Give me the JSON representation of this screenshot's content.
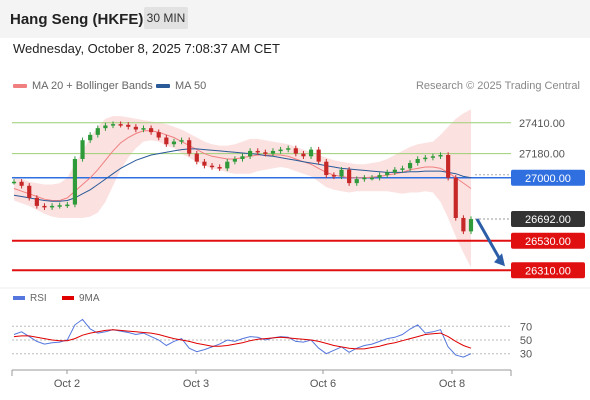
{
  "header": {
    "title": "Hang Seng (HKFE)",
    "timeframe": "30 MIN"
  },
  "datetime": "Wednesday, October 8, 2025 7:08:37 AM CET",
  "legend": {
    "ma20_label": "MA 20 + Bollinger Bands",
    "ma50_label": "MA 50",
    "ma20_color": "#f08080",
    "ma50_color": "#2a5a98"
  },
  "credit": "Research © 2025 Trading Central",
  "rsi_legend": {
    "rsi_label": "RSI",
    "ma_label": "9MA",
    "rsi_color": "#5577dd",
    "ma_color": "#e00000"
  },
  "chart_data": {
    "type": "line",
    "series_kind": "candlestick price with overlays",
    "y_range": [
      26200,
      27580
    ],
    "x_ticks": [
      "Oct 2",
      "Oct 3",
      "Oct 6",
      "Oct 8"
    ],
    "levels": [
      {
        "value": 27410,
        "label": "27410.00",
        "kind": "resistance",
        "color": "#9bcf74"
      },
      {
        "value": 27180,
        "label": "27180.00",
        "kind": "resistance",
        "color": "#9bcf74"
      },
      {
        "value": 27000,
        "label": "27000.00",
        "kind": "pivot",
        "color": "#2f6fe0"
      },
      {
        "value": 26692,
        "label": "26692.00",
        "kind": "last",
        "color": "#333333"
      },
      {
        "value": 26530,
        "label": "26530.00",
        "kind": "support",
        "color": "#e01010"
      },
      {
        "value": 26310,
        "label": "26310.00",
        "kind": "support",
        "color": "#e01010"
      }
    ],
    "price": [
      26970,
      26940,
      26850,
      26790,
      26780,
      26790,
      26795,
      26800,
      27140,
      27280,
      27320,
      27370,
      27390,
      27400,
      27395,
      27380,
      27360,
      27370,
      27340,
      27300,
      27250,
      27270,
      27280,
      27180,
      27120,
      27090,
      27080,
      27070,
      27120,
      27140,
      27160,
      27200,
      27190,
      27180,
      27200,
      27210,
      27220,
      27180,
      27160,
      27210,
      27120,
      27020,
      27010,
      27060,
      26960,
      26990,
      27000,
      27000,
      27020,
      27040,
      27060,
      27070,
      27110,
      27140,
      27150,
      27160,
      27170,
      27000,
      26700,
      26600,
      26692
    ],
    "ma20": [
      26920,
      26900,
      26880,
      26860,
      26840,
      26830,
      26830,
      26850,
      26900,
      26950,
      27000,
      27060,
      27130,
      27200,
      27260,
      27300,
      27330,
      27350,
      27350,
      27340,
      27320,
      27300,
      27270,
      27240,
      27210,
      27180,
      27160,
      27150,
      27140,
      27140,
      27150,
      27160,
      27170,
      27170,
      27170,
      27170,
      27160,
      27140,
      27120,
      27100,
      27070,
      27040,
      27020,
      27010,
      27000,
      27000,
      27000,
      27005,
      27010,
      27020,
      27030,
      27040,
      27060,
      27070,
      27080,
      27080,
      27070,
      27040,
      27000,
      26960,
      26920
    ],
    "ma50": [
      26870,
      26860,
      26850,
      26840,
      26830,
      26825,
      26825,
      26830,
      26850,
      26880,
      26910,
      26950,
      26990,
      27030,
      27070,
      27100,
      27130,
      27150,
      27170,
      27180,
      27190,
      27200,
      27210,
      27215,
      27215,
      27210,
      27205,
      27200,
      27195,
      27190,
      27185,
      27180,
      27175,
      27165,
      27160,
      27150,
      27140,
      27130,
      27120,
      27110,
      27100,
      27090,
      27080,
      27070,
      27065,
      27060,
      27055,
      27050,
      27045,
      27040,
      27040,
      27040,
      27045,
      27045,
      27050,
      27050,
      27050,
      27040,
      27030,
      27010,
      27000
    ],
    "bb_upper": [
      27010,
      26990,
      26970,
      26960,
      26950,
      26950,
      26960,
      27000,
      27100,
      27200,
      27300,
      27380,
      27440,
      27460,
      27460,
      27450,
      27440,
      27430,
      27420,
      27410,
      27400,
      27380,
      27360,
      27330,
      27300,
      27270,
      27250,
      27240,
      27240,
      27250,
      27270,
      27290,
      27290,
      27280,
      27270,
      27260,
      27250,
      27230,
      27210,
      27190,
      27170,
      27150,
      27130,
      27120,
      27110,
      27100,
      27100,
      27110,
      27120,
      27140,
      27170,
      27200,
      27230,
      27250,
      27260,
      27270,
      27320,
      27380,
      27440,
      27480,
      27510
    ],
    "bb_lower": [
      26830,
      26810,
      26790,
      26760,
      26730,
      26710,
      26700,
      26700,
      26700,
      26700,
      26710,
      26740,
      26820,
      26940,
      27060,
      27150,
      27220,
      27270,
      27280,
      27270,
      27240,
      27220,
      27180,
      27150,
      27120,
      27090,
      27070,
      27060,
      27040,
      27030,
      27030,
      27030,
      27050,
      27060,
      27070,
      27080,
      27070,
      27050,
      27030,
      27010,
      26970,
      26930,
      26910,
      26900,
      26890,
      26900,
      26900,
      26900,
      26900,
      26900,
      26890,
      26880,
      26890,
      26890,
      26900,
      26890,
      26820,
      26700,
      26560,
      26440,
      26330
    ],
    "forecast_arrow": {
      "from": 26692,
      "to": 26310
    },
    "rsi": {
      "levels": [
        70,
        50,
        30
      ],
      "range": [
        15,
        85
      ],
      "rsi": [
        58,
        62,
        55,
        48,
        44,
        46,
        47,
        50,
        72,
        80,
        66,
        60,
        62,
        65,
        63,
        61,
        58,
        60,
        55,
        50,
        42,
        48,
        52,
        38,
        33,
        36,
        40,
        44,
        50,
        48,
        52,
        55,
        54,
        50,
        53,
        55,
        54,
        48,
        47,
        50,
        38,
        30,
        35,
        40,
        32,
        38,
        42,
        44,
        48,
        52,
        54,
        58,
        66,
        72,
        60,
        62,
        65,
        40,
        28,
        25,
        30
      ],
      "ma9": [
        55,
        56,
        56,
        54,
        52,
        50,
        49,
        49,
        52,
        57,
        60,
        62,
        64,
        65,
        64,
        63,
        62,
        61,
        60,
        58,
        55,
        52,
        50,
        48,
        45,
        43,
        41,
        41,
        42,
        44,
        46,
        49,
        51,
        52,
        53,
        54,
        53,
        52,
        51,
        50,
        48,
        45,
        42,
        40,
        38,
        37,
        37,
        39,
        41,
        44,
        46,
        49,
        52,
        55,
        58,
        59,
        60,
        55,
        48,
        42,
        38
      ]
    }
  }
}
